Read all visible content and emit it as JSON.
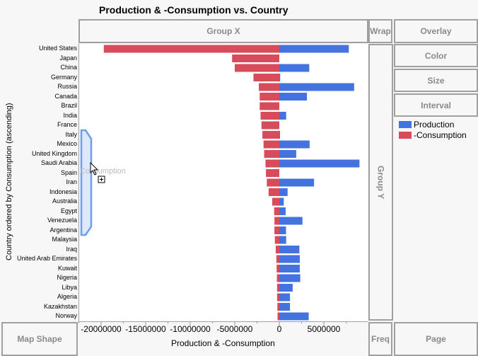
{
  "title": "Production & -Consumption vs. Country",
  "zones": {
    "group_x": "Group X",
    "group_y": "Group Y",
    "wrap": "Wrap",
    "overlay": "Overlay",
    "color": "Color",
    "size": "Size",
    "interval": "Interval",
    "map_shape": "Map Shape",
    "freq": "Freq",
    "page": "Page"
  },
  "drag_hint": "Consumption",
  "colors": {
    "production": "#4472de",
    "consumption": "#d84b5a"
  },
  "chart_data": {
    "type": "bar",
    "orientation": "horizontal",
    "title": "Production & -Consumption vs. Country",
    "xlabel": "Production & -Consumption",
    "ylabel": "Country ordered by Consumption (ascending)",
    "xlim": [
      -22000000,
      10000000
    ],
    "xticks": [
      -20000000,
      -15000000,
      -10000000,
      -5000000,
      0,
      5000000
    ],
    "xtick_labels": [
      "-20000000",
      "-15000000",
      "-10000000",
      "-5000000",
      "0",
      "5000000"
    ],
    "legend": [
      "Production",
      "-Consumption"
    ],
    "legend_position": "right",
    "categories": [
      "United States",
      "Japan",
      "China",
      "Germany",
      "Russia",
      "Canada",
      "Brazil",
      "India",
      "France",
      "Italy",
      "Mexico",
      "United Kingdom",
      "Saudi Arabia",
      "Spain",
      "Iran",
      "Indonesia",
      "Australia",
      "Egypt",
      "Venezuela",
      "Argentina",
      "Malaysia",
      "Iraq",
      "United Arab Emirates",
      "Kuwait",
      "Nigeria",
      "Libya",
      "Algeria",
      "Kazakhstan",
      "Norway"
    ],
    "series": [
      {
        "name": "Production",
        "values": [
          7800000,
          0,
          3360000,
          100000,
          8400000,
          3100000,
          0,
          770000,
          0,
          50000,
          3400000,
          1900000,
          9000000,
          0,
          3900000,
          930000,
          500000,
          710000,
          2600000,
          750000,
          770000,
          2250000,
          2300000,
          2300000,
          2350000,
          1500000,
          1200000,
          1200000,
          3300000
        ]
      },
      {
        "name": "-Consumption",
        "values": [
          -19700000,
          -5300000,
          -5000000,
          -2900000,
          -2300000,
          -2200000,
          -2200000,
          -2100000,
          -2000000,
          -1900000,
          -1770000,
          -1700000,
          -1550000,
          -1500000,
          -1400000,
          -1200000,
          -800000,
          -580000,
          -550000,
          -550000,
          -500000,
          -400000,
          -330000,
          -300000,
          -270000,
          -250000,
          -250000,
          -220000,
          -200000
        ]
      }
    ]
  }
}
